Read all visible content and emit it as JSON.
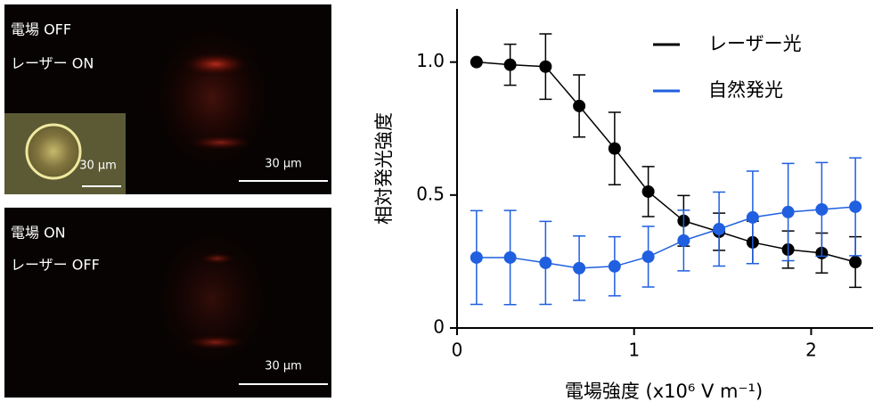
{
  "panels": [
    {
      "labels": [
        "電場 OFF",
        "レーザー ON"
      ],
      "scale": "30 μm",
      "inset_scale": "30 μm"
    },
    {
      "labels": [
        "電場 ON",
        "レーザー OFF"
      ],
      "scale": "30 μm"
    }
  ],
  "chart_data": {
    "type": "line",
    "x_label": "電場強度 (x10⁶ V m⁻¹)",
    "y_label": "相対発光強度",
    "x": [
      0.11,
      0.3,
      0.5,
      0.69,
      0.89,
      1.08,
      1.28,
      1.48,
      1.67,
      1.87,
      2.06,
      2.25
    ],
    "series": [
      {
        "name": "レーザー光",
        "color": "#000000",
        "values": [
          1.0,
          0.99,
          0.983,
          0.835,
          0.675,
          0.513,
          0.403,
          0.362,
          0.322,
          0.295,
          0.282,
          0.248
        ],
        "errors": [
          0,
          0.077,
          0.123,
          0.117,
          0.136,
          0.094,
          0.095,
          0.07,
          0.08,
          0.07,
          0.075,
          0.095
        ]
      },
      {
        "name": "自然発光",
        "color": "#1f5fe0",
        "values": [
          0.265,
          0.265,
          0.245,
          0.225,
          0.232,
          0.268,
          0.329,
          0.372,
          0.416,
          0.436,
          0.446,
          0.456
        ],
        "errors": [
          0.176,
          0.177,
          0.156,
          0.121,
          0.111,
          0.114,
          0.114,
          0.139,
          0.174,
          0.183,
          0.176,
          0.184
        ]
      }
    ],
    "xlim": [
      0,
      2.35
    ],
    "xticks": [
      0,
      1,
      2
    ],
    "ylim": [
      0,
      1.2
    ],
    "yticks": [
      0,
      0.5,
      {
        "value": 1,
        "label": "1.0"
      }
    ],
    "legend": "upper right"
  }
}
